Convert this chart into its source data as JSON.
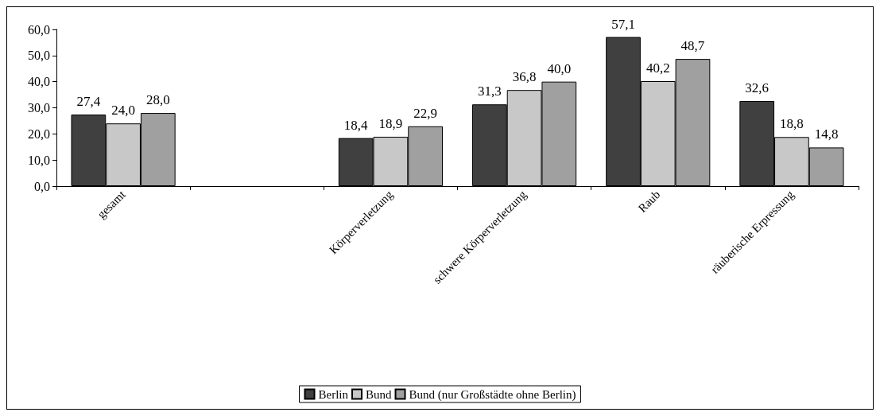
{
  "chart_data": {
    "type": "bar",
    "categories": [
      "gesamt",
      null,
      "Körperverletzung",
      "schwere Körperverletzung",
      "Raub",
      "räuberische Erpressung"
    ],
    "series": [
      {
        "name": "Berlin",
        "color": "#404040",
        "values": [
          27.4,
          null,
          18.4,
          31.3,
          57.1,
          32.6
        ],
        "value_labels": [
          "27,4",
          null,
          "18,4",
          "31,3",
          "57,1",
          "32,6"
        ]
      },
      {
        "name": "Bund",
        "color": "#c8c8c8",
        "values": [
          24.0,
          null,
          18.9,
          36.8,
          40.2,
          18.8
        ],
        "value_labels": [
          "24,0",
          null,
          "18,9",
          "36,8",
          "40,2",
          "18,8"
        ]
      },
      {
        "name": "Bund (nur Großstädte ohne Berlin)",
        "color": "#a0a0a0",
        "values": [
          28.0,
          null,
          22.9,
          40.0,
          48.7,
          14.8
        ],
        "value_labels": [
          "28,0",
          null,
          "22,9",
          "40,0",
          "48,7",
          "14,8"
        ]
      }
    ],
    "ylim": [
      0,
      60
    ],
    "yticks": [
      {
        "value": 0,
        "label": "0,0"
      },
      {
        "value": 10,
        "label": "10,0"
      },
      {
        "value": 20,
        "label": "20,0"
      },
      {
        "value": 30,
        "label": "30,0"
      },
      {
        "value": 40,
        "label": "40,0"
      },
      {
        "value": 50,
        "label": "50,0"
      },
      {
        "value": 60,
        "label": "60,0"
      }
    ],
    "grid": false,
    "legend": "bottom"
  }
}
